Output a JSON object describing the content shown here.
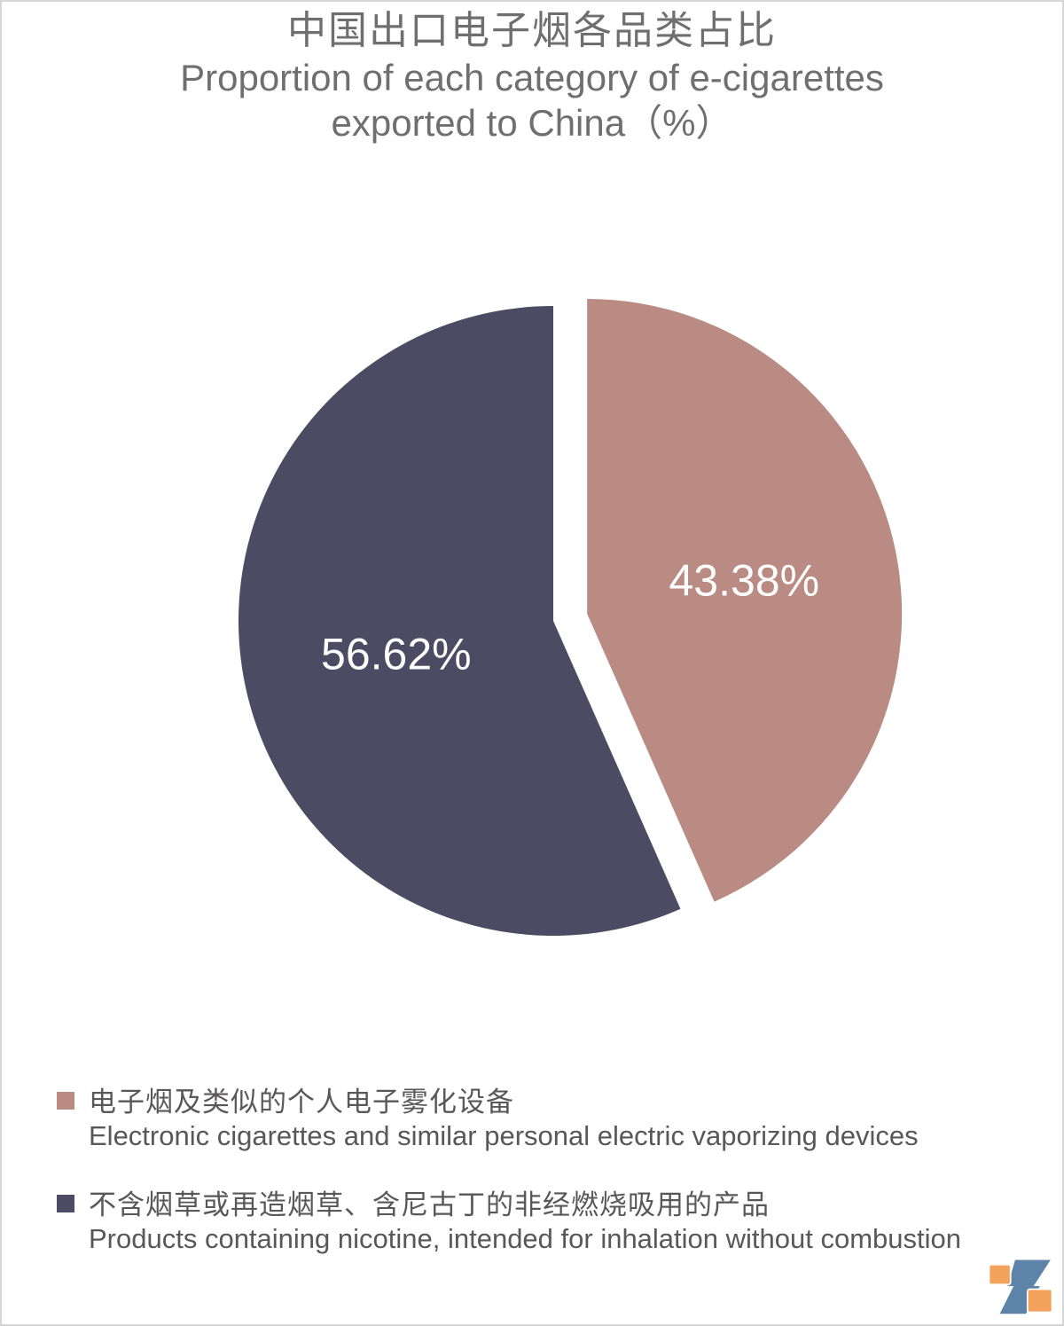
{
  "page": {
    "background": "#ffffff",
    "border_color": "#d6d6d6"
  },
  "title": {
    "line1_zh": "中国出口电子烟各品类占比",
    "line2_en": "Proportion of each category of e-cigarettes",
    "line3_en": "exported to China（%）",
    "color": "#6f6f6f"
  },
  "chart_data": {
    "type": "pie",
    "title": "中国出口电子烟各品类占比",
    "subtitle": "Proportion of each category of e-cigarettes exported to China（%）",
    "unit": "%",
    "start_angle": "12 o'clock, clockwise",
    "label_color": "#ffffff",
    "legend_position": "bottom-left",
    "slices": [
      {
        "label_zh": "电子烟及类似的个人电子雾化设备",
        "label_en": "Electronic cigarettes and similar personal electric vaporizing devices",
        "value": 43.38,
        "display": "43.38%",
        "color": "#ba8b82",
        "exploded": true
      },
      {
        "label_zh": "不含烟草或再造烟草、含尼古丁的非经燃烧吸用的产品",
        "label_en": "Products containing nicotine, intended for inhalation without combustion",
        "value": 56.62,
        "display": "56.62%",
        "color": "#4d4a63",
        "exploded": false
      }
    ]
  },
  "logo": {
    "orange": "#f3a25c",
    "blue": "#5d84a8"
  }
}
